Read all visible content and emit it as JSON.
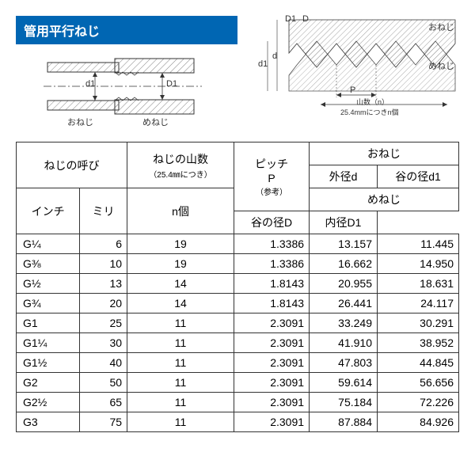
{
  "title": "管用平行ねじ",
  "pipe_labels": {
    "left": "おねじ",
    "right": "めねじ",
    "d1": "d1",
    "D1": "D1"
  },
  "thread_labels": {
    "onegji": "おねじ",
    "menegji": "めねじ",
    "D": "D",
    "D1": "D1",
    "d": "d",
    "d1": "d1",
    "P": "P",
    "yamasu": "山数（n）",
    "note": "25.4mmにつきn個"
  },
  "headers": {
    "neji_yobi": "ねじの呼び",
    "inch": "インチ",
    "miri": "ミリ",
    "yamasu": "ねじの山数",
    "yamasu_sub": "（25.4㎜につき）",
    "nko": "n個",
    "pitch": "ピッチ",
    "pitch_p": "P",
    "pitch_note": "（参考）",
    "onegji": "おねじ",
    "menegji": "めねじ",
    "gaikei_d": "外径d",
    "tani_d1": "谷の径d1",
    "tani_D": "谷の径D",
    "naikei_D1": "内径D1"
  },
  "rows": [
    {
      "inch": "G¼",
      "miri": "6",
      "n": "19",
      "p": "1.3386",
      "d": "13.157",
      "d1": "11.445"
    },
    {
      "inch": "G⅜",
      "miri": "10",
      "n": "19",
      "p": "1.3386",
      "d": "16.662",
      "d1": "14.950"
    },
    {
      "inch": "G½",
      "miri": "13",
      "n": "14",
      "p": "1.8143",
      "d": "20.955",
      "d1": "18.631"
    },
    {
      "inch": "G¾",
      "miri": "20",
      "n": "14",
      "p": "1.8143",
      "d": "26.441",
      "d1": "24.117"
    },
    {
      "inch": "G1",
      "miri": "25",
      "n": "11",
      "p": "2.3091",
      "d": "33.249",
      "d1": "30.291"
    },
    {
      "inch": "G1¼",
      "miri": "30",
      "n": "11",
      "p": "2.3091",
      "d": "41.910",
      "d1": "38.952"
    },
    {
      "inch": "G1½",
      "miri": "40",
      "n": "11",
      "p": "2.3091",
      "d": "47.803",
      "d1": "44.845"
    },
    {
      "inch": "G2",
      "miri": "50",
      "n": "11",
      "p": "2.3091",
      "d": "59.614",
      "d1": "56.656"
    },
    {
      "inch": "G2½",
      "miri": "65",
      "n": "11",
      "p": "2.3091",
      "d": "75.184",
      "d1": "72.226"
    },
    {
      "inch": "G3",
      "miri": "75",
      "n": "11",
      "p": "2.3091",
      "d": "87.884",
      "d1": "84.926"
    }
  ],
  "colors": {
    "title_bg": "#0066b3",
    "hatch": "#888888",
    "line": "#333333"
  }
}
